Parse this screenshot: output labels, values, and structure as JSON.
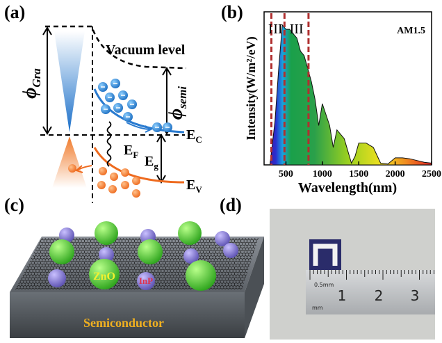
{
  "panels": {
    "a": {
      "label": "(a)",
      "vacuum_level": "Vacuum level",
      "phi_gra": {
        "symbol": "ϕ",
        "subscript": "Gra"
      },
      "phi_semi": {
        "symbol": "ϕ",
        "subscript": "semi"
      },
      "ec": {
        "symbol": "E",
        "subscript": "C"
      },
      "ef": {
        "symbol": "E",
        "subscript": "F"
      },
      "eg": {
        "symbol": "E",
        "subscript": "g"
      },
      "ev": {
        "symbol": "E",
        "subscript": "V"
      }
    },
    "b": {
      "label": "(b)",
      "chart_data": {
        "type": "area",
        "annotation": "AM1.5",
        "regions": [
          "I",
          "II",
          "III"
        ],
        "region_bounds": [
          300,
          480,
          810
        ],
        "x_label": "Wavelength(nm)",
        "y_label": "Intensity(W/m²/eV)",
        "x": [
          280,
          350,
          400,
          450,
          500,
          550,
          600,
          650,
          700,
          750,
          800,
          850,
          900,
          950,
          1000,
          1100,
          1150,
          1200,
          1300,
          1400,
          1450,
          1500,
          1600,
          1700,
          1800,
          1900,
          2000,
          2100,
          2200,
          2300,
          2400,
          2500
        ],
        "values": [
          0,
          0.5,
          1.1,
          1.6,
          1.55,
          1.55,
          1.5,
          1.45,
          1.3,
          1.25,
          1.1,
          0.95,
          0.75,
          0.45,
          0.7,
          0.45,
          0.2,
          0.4,
          0.3,
          0.02,
          0.1,
          0.25,
          0.25,
          0.2,
          0.02,
          0.01,
          0.08,
          0.08,
          0.07,
          0.05,
          0.03,
          0.02
        ],
        "xlim": [
          200,
          2500
        ],
        "ylim": [
          0,
          1.75
        ],
        "xticks": [
          500,
          1000,
          1500,
          2000,
          2500
        ]
      }
    },
    "c": {
      "label": "(c)",
      "zno": "ZnO",
      "inp": "InP",
      "substrate": "Semiconductor"
    },
    "d": {
      "label": "(d)",
      "ruler_small": "0.5mm",
      "ruler_unit": "mm",
      "ruler_numbers": [
        "1",
        "2",
        "3"
      ]
    }
  }
}
